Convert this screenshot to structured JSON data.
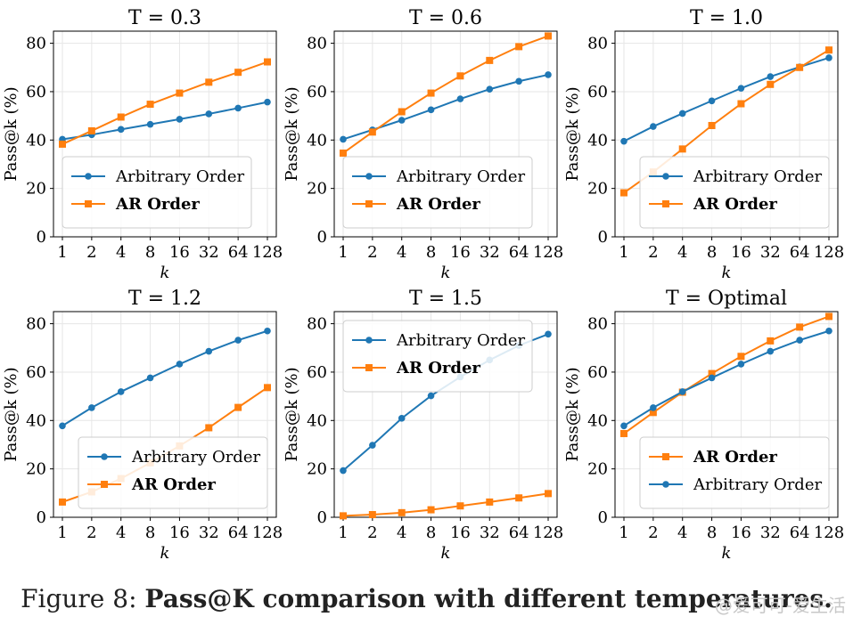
{
  "caption": {
    "prefix": "Figure 8: ",
    "text": "Pass@K comparison with different temperatures."
  },
  "watermark": "@爱可可-爱生活",
  "colors": {
    "arbitrary": "#1f77b4",
    "ar": "#ff7f0e",
    "grid": "#e6e6e6"
  },
  "chart_data": [
    {
      "type": "line",
      "title": "T = 0.3",
      "title_var": "T",
      "title_value": "0.3",
      "xlabel": "k",
      "ylabel": "Pass@k (%)",
      "categories": [
        "1",
        "2",
        "4",
        "8",
        "16",
        "32",
        "64",
        "128"
      ],
      "ylim": [
        0,
        85
      ],
      "yticks": [
        0,
        20,
        40,
        60,
        80
      ],
      "legend_position": "lower-left",
      "series": [
        {
          "name": "Arbitrary Order",
          "key": "arbitrary",
          "marker": "circle",
          "bold": false,
          "values": [
            40.3,
            42.2,
            44.4,
            46.5,
            48.6,
            50.8,
            53.2,
            55.7
          ]
        },
        {
          "name": "AR Order",
          "key": "ar",
          "marker": "square",
          "bold": true,
          "values": [
            38.3,
            43.8,
            49.5,
            54.8,
            59.4,
            63.9,
            68.0,
            72.3
          ]
        }
      ]
    },
    {
      "type": "line",
      "title": "T = 0.6",
      "title_var": "T",
      "title_value": "0.6",
      "xlabel": "k",
      "ylabel": "Pass@k (%)",
      "categories": [
        "1",
        "2",
        "4",
        "8",
        "16",
        "32",
        "64",
        "128"
      ],
      "ylim": [
        0,
        85
      ],
      "yticks": [
        0,
        20,
        40,
        60,
        80
      ],
      "legend_position": "lower-left",
      "series": [
        {
          "name": "Arbitrary Order",
          "key": "arbitrary",
          "marker": "circle",
          "bold": false,
          "values": [
            40.3,
            44.2,
            48.2,
            52.5,
            57.0,
            61.0,
            64.3,
            67.0
          ]
        },
        {
          "name": "AR Order",
          "key": "ar",
          "marker": "square",
          "bold": true,
          "values": [
            34.6,
            43.3,
            51.7,
            59.4,
            66.5,
            72.9,
            78.6,
            83.0
          ]
        }
      ]
    },
    {
      "type": "line",
      "title": "T = 1.0",
      "title_var": "T",
      "title_value": "1.0",
      "xlabel": "k",
      "ylabel": "Pass@k (%)",
      "categories": [
        "1",
        "2",
        "4",
        "8",
        "16",
        "32",
        "64",
        "128"
      ],
      "ylim": [
        0,
        85
      ],
      "yticks": [
        0,
        20,
        40,
        60,
        80
      ],
      "legend_position": "lower-right",
      "series": [
        {
          "name": "Arbitrary Order",
          "key": "arbitrary",
          "marker": "circle",
          "bold": false,
          "values": [
            39.5,
            45.6,
            51.0,
            56.2,
            61.4,
            66.2,
            70.2,
            74.0
          ]
        },
        {
          "name": "AR Order",
          "key": "ar",
          "marker": "square",
          "bold": true,
          "values": [
            18.2,
            26.8,
            36.3,
            46.0,
            55.0,
            63.0,
            70.0,
            77.2
          ]
        }
      ]
    },
    {
      "type": "line",
      "title": "T = 1.2",
      "title_var": "T",
      "title_value": "1.2",
      "xlabel": "k",
      "ylabel": "Pass@k (%)",
      "categories": [
        "1",
        "2",
        "4",
        "8",
        "16",
        "32",
        "64",
        "128"
      ],
      "ylim": [
        0,
        85
      ],
      "yticks": [
        0,
        20,
        40,
        60,
        80
      ],
      "legend_position": "lower-right",
      "series": [
        {
          "name": "Arbitrary Order",
          "key": "arbitrary",
          "marker": "circle",
          "bold": false,
          "values": [
            37.8,
            45.3,
            51.9,
            57.6,
            63.3,
            68.6,
            73.2,
            77.0
          ]
        },
        {
          "name": "AR Order",
          "key": "ar",
          "marker": "square",
          "bold": true,
          "values": [
            6.3,
            10.5,
            16.0,
            22.5,
            29.5,
            37.0,
            45.4,
            53.6
          ]
        }
      ]
    },
    {
      "type": "line",
      "title": "T = 1.5",
      "title_var": "T",
      "title_value": "1.5",
      "xlabel": "k",
      "ylabel": "Pass@k (%)",
      "categories": [
        "1",
        "2",
        "4",
        "8",
        "16",
        "32",
        "64",
        "128"
      ],
      "ylim": [
        0,
        85
      ],
      "yticks": [
        0,
        20,
        40,
        60,
        80
      ],
      "legend_position": "upper-left",
      "series": [
        {
          "name": "Arbitrary Order",
          "key": "arbitrary",
          "marker": "circle",
          "bold": false,
          "values": [
            19.3,
            29.8,
            40.9,
            50.2,
            58.0,
            65.0,
            71.0,
            75.7
          ]
        },
        {
          "name": "AR Order",
          "key": "ar",
          "marker": "square",
          "bold": true,
          "values": [
            0.6,
            1.1,
            1.9,
            3.1,
            4.7,
            6.3,
            8.0,
            9.8
          ]
        }
      ]
    },
    {
      "type": "line",
      "title": "T = Optimal",
      "title_var": "T",
      "title_value": "Optimal",
      "xlabel": "k",
      "ylabel": "Pass@k (%)",
      "categories": [
        "1",
        "2",
        "4",
        "8",
        "16",
        "32",
        "64",
        "128"
      ],
      "ylim": [
        0,
        85
      ],
      "yticks": [
        0,
        20,
        40,
        60,
        80
      ],
      "legend_position": "lower-right",
      "series": [
        {
          "name": "AR Order",
          "key": "ar",
          "marker": "square",
          "bold": true,
          "values": [
            34.6,
            43.3,
            51.7,
            59.4,
            66.5,
            72.9,
            78.6,
            83.0
          ]
        },
        {
          "name": "Arbitrary Order",
          "key": "arbitrary",
          "marker": "circle",
          "bold": false,
          "values": [
            37.8,
            45.3,
            51.9,
            57.6,
            63.3,
            68.6,
            73.2,
            77.0
          ]
        }
      ]
    }
  ]
}
